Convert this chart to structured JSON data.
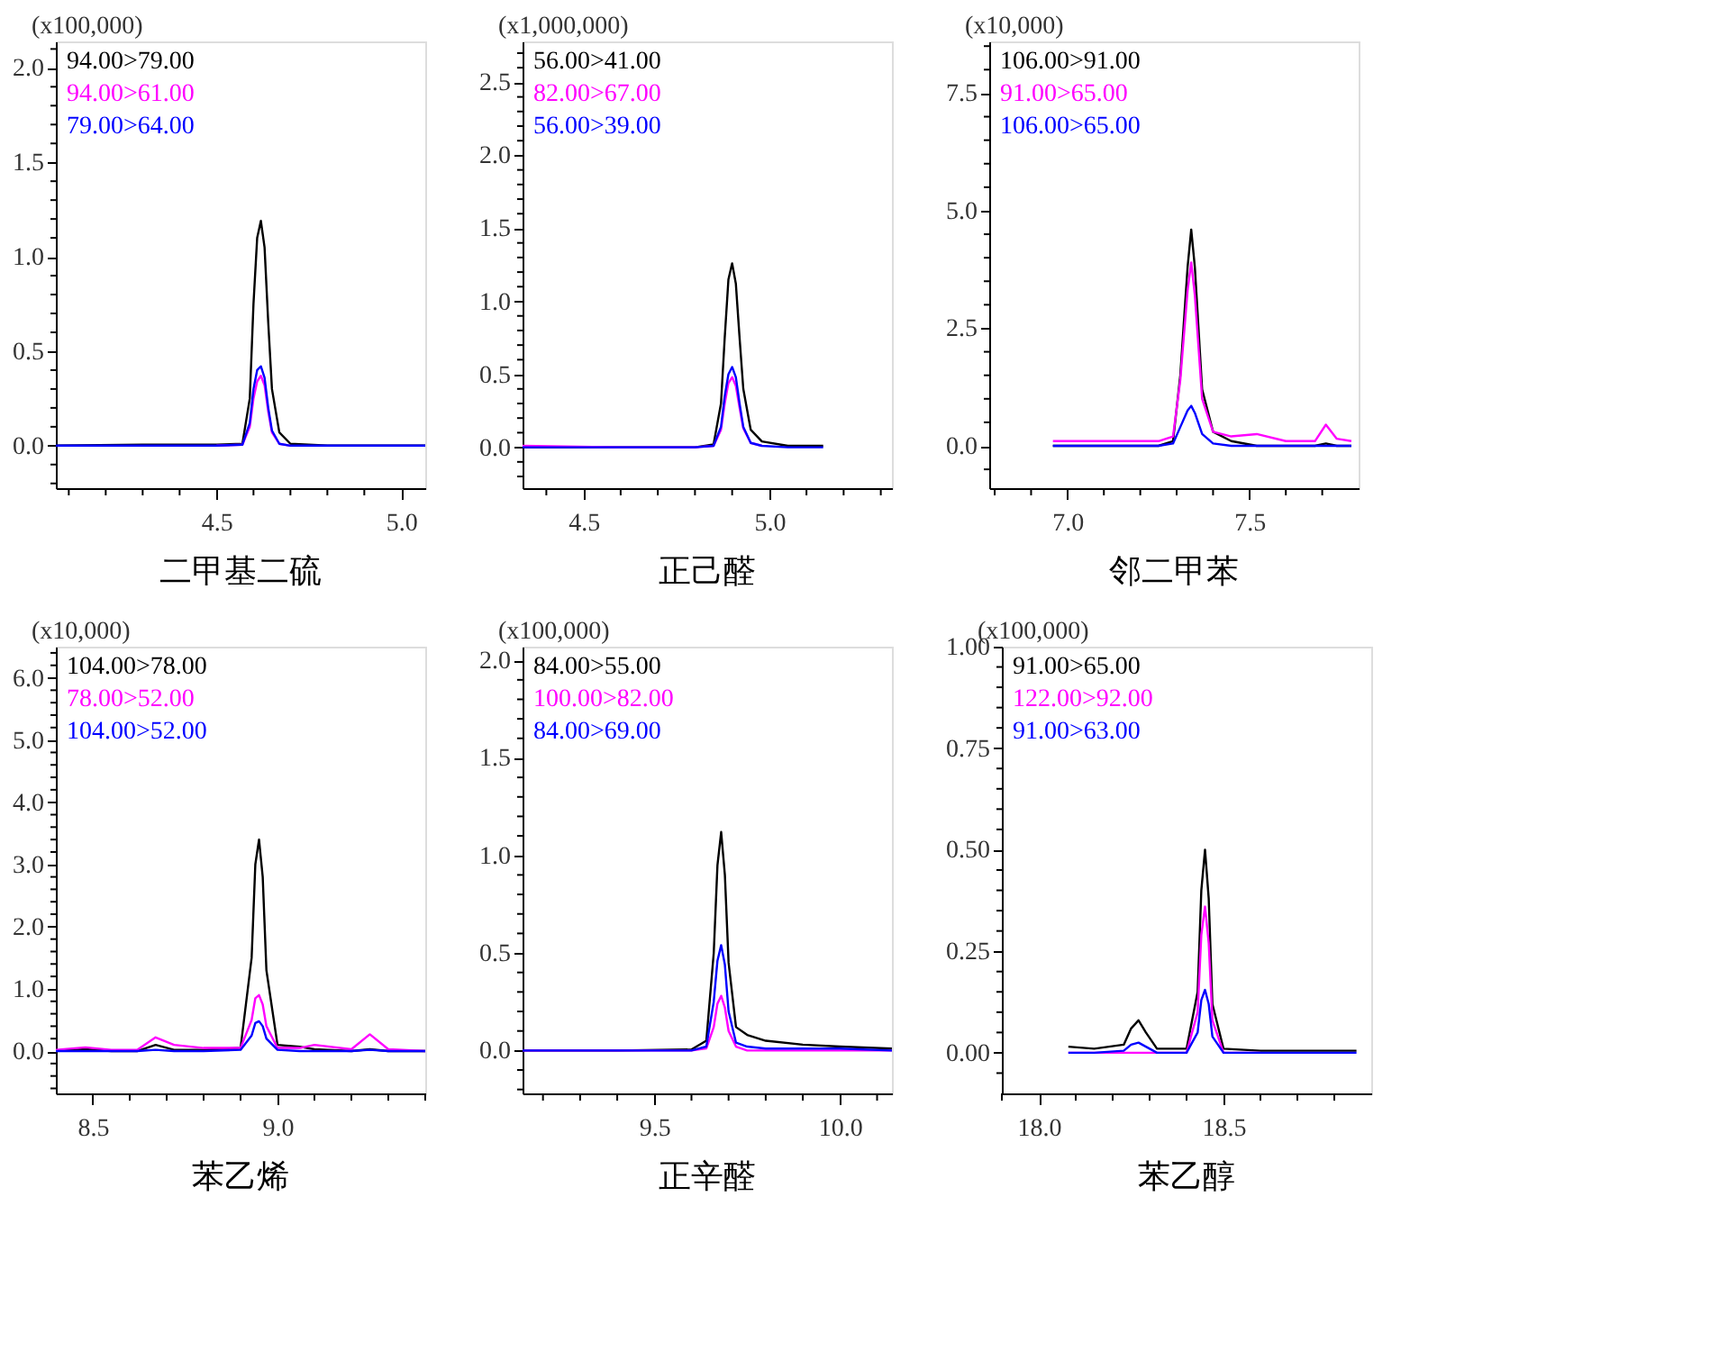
{
  "chart_data": [
    {
      "type": "line",
      "title": "二甲基二硫",
      "ylabel": "(x100,000)",
      "legend": "top left",
      "grid": false,
      "line_style": "solid",
      "marker": "none",
      "x": [
        4.065,
        4.3,
        4.5,
        4.57,
        4.59,
        4.6,
        4.61,
        4.62,
        4.63,
        4.64,
        4.65,
        4.67,
        4.7,
        4.8,
        5.065
      ],
      "series": [
        {
          "name": "94.00>79.00",
          "color": "#000000",
          "values": [
            0,
            0.005,
            0.005,
            0.01,
            0.25,
            0.75,
            1.1,
            1.19,
            1.05,
            0.65,
            0.3,
            0.07,
            0.01,
            0,
            0
          ]
        },
        {
          "name": "94.00>61.00",
          "color": "#ff00ff",
          "values": [
            null,
            null,
            0,
            0.005,
            0.1,
            0.25,
            0.34,
            0.37,
            0.32,
            0.18,
            0.07,
            0.01,
            0,
            null,
            null
          ]
        },
        {
          "name": "79.00>64.00",
          "color": "#0000ff",
          "values": [
            0,
            0,
            0,
            0.005,
            0.12,
            0.3,
            0.4,
            0.42,
            0.36,
            0.2,
            0.08,
            0.01,
            0,
            0,
            0
          ]
        }
      ],
      "xlim": [
        4.065,
        5.065
      ],
      "ylim": [
        -0.225,
        2.14
      ],
      "xticks": [
        {
          "value": 4.1,
          "label": null
        },
        {
          "value": 4.2,
          "label": null
        },
        {
          "value": 4.3,
          "label": null
        },
        {
          "value": 4.4,
          "label": null
        },
        {
          "value": 4.5,
          "label": "4.5"
        },
        {
          "value": 4.6,
          "label": null
        },
        {
          "value": 4.7,
          "label": null
        },
        {
          "value": 4.8,
          "label": null
        },
        {
          "value": 4.9,
          "label": null
        },
        {
          "value": 5.0,
          "label": "5.0"
        }
      ],
      "yticks": [
        {
          "value": -0.2,
          "label": null
        },
        {
          "value": -0.1,
          "label": null
        },
        {
          "value": 0,
          "label": "0.0"
        },
        {
          "value": 0.1,
          "label": null
        },
        {
          "value": 0.2,
          "label": null
        },
        {
          "value": 0.3,
          "label": null
        },
        {
          "value": 0.4,
          "label": null
        },
        {
          "value": 0.5,
          "label": "0.5"
        },
        {
          "value": 0.6,
          "label": null
        },
        {
          "value": 0.7,
          "label": null
        },
        {
          "value": 0.8,
          "label": null
        },
        {
          "value": 0.9,
          "label": null
        },
        {
          "value": 1.0,
          "label": "1.0"
        },
        {
          "value": 1.1,
          "label": null
        },
        {
          "value": 1.2,
          "label": null
        },
        {
          "value": 1.3,
          "label": null
        },
        {
          "value": 1.4,
          "label": null
        },
        {
          "value": 1.5,
          "label": "1.5"
        },
        {
          "value": 1.6,
          "label": null
        },
        {
          "value": 1.7,
          "label": null
        },
        {
          "value": 1.8,
          "label": null
        },
        {
          "value": 1.9,
          "label": null
        },
        {
          "value": 2.0,
          "label": "2.0"
        },
        {
          "value": 2.1,
          "label": null
        }
      ]
    },
    {
      "type": "line",
      "title": "正己醛",
      "ylabel": "(x1,000,000)",
      "legend": "top left",
      "grid": false,
      "line_style": "solid",
      "marker": "none",
      "x": [
        4.336,
        4.6,
        4.8,
        4.85,
        4.87,
        4.88,
        4.89,
        4.9,
        4.91,
        4.92,
        4.93,
        4.95,
        4.98,
        5.05,
        5.145
      ],
      "series": [
        {
          "name": "56.00>41.00",
          "color": "#000000",
          "values": [
            0,
            0,
            0,
            0.02,
            0.3,
            0.75,
            1.15,
            1.26,
            1.12,
            0.75,
            0.4,
            0.12,
            0.04,
            0.01,
            0.01
          ]
        },
        {
          "name": "82.00>67.00",
          "color": "#ff00ff",
          "values": [
            0.01,
            0,
            0,
            0.01,
            0.12,
            0.3,
            0.44,
            0.48,
            0.42,
            0.27,
            0.13,
            0.03,
            0.01,
            null,
            null
          ]
        },
        {
          "name": "56.00>39.00",
          "color": "#0000ff",
          "values": [
            0,
            0,
            0,
            0.01,
            0.14,
            0.35,
            0.5,
            0.55,
            0.48,
            0.3,
            0.14,
            0.03,
            0.01,
            0,
            0
          ]
        }
      ],
      "xlim": [
        4.336,
        5.33
      ],
      "ylim": [
        -0.28,
        2.78
      ],
      "xticks": [
        {
          "value": 4.4,
          "label": null
        },
        {
          "value": 4.5,
          "label": "4.5"
        },
        {
          "value": 4.6,
          "label": null
        },
        {
          "value": 4.7,
          "label": null
        },
        {
          "value": 4.8,
          "label": null
        },
        {
          "value": 4.9,
          "label": null
        },
        {
          "value": 5.0,
          "label": "5.0"
        },
        {
          "value": 5.1,
          "label": null
        },
        {
          "value": 5.2,
          "label": null
        },
        {
          "value": 5.3,
          "label": null
        }
      ],
      "yticks": [
        {
          "value": -0.2,
          "label": null
        },
        {
          "value": -0.1,
          "label": null
        },
        {
          "value": 0,
          "label": "0.0"
        },
        {
          "value": 0.1,
          "label": null
        },
        {
          "value": 0.2,
          "label": null
        },
        {
          "value": 0.3,
          "label": null
        },
        {
          "value": 0.4,
          "label": null
        },
        {
          "value": 0.5,
          "label": "0.5"
        },
        {
          "value": 0.6,
          "label": null
        },
        {
          "value": 0.7,
          "label": null
        },
        {
          "value": 0.8,
          "label": null
        },
        {
          "value": 0.9,
          "label": null
        },
        {
          "value": 1.0,
          "label": "1.0"
        },
        {
          "value": 1.1,
          "label": null
        },
        {
          "value": 1.2,
          "label": null
        },
        {
          "value": 1.3,
          "label": null
        },
        {
          "value": 1.4,
          "label": null
        },
        {
          "value": 1.5,
          "label": "1.5"
        },
        {
          "value": 1.6,
          "label": null
        },
        {
          "value": 1.7,
          "label": null
        },
        {
          "value": 1.8,
          "label": null
        },
        {
          "value": 1.9,
          "label": null
        },
        {
          "value": 2.0,
          "label": "2.0"
        },
        {
          "value": 2.1,
          "label": null
        },
        {
          "value": 2.2,
          "label": null
        },
        {
          "value": 2.3,
          "label": null
        },
        {
          "value": 2.4,
          "label": null
        },
        {
          "value": 2.5,
          "label": "2.5"
        },
        {
          "value": 2.6,
          "label": null
        },
        {
          "value": 2.7,
          "label": null
        }
      ]
    },
    {
      "type": "line",
      "title": "邻二甲苯",
      "ylabel": "(x10,000)",
      "legend": "top left",
      "grid": false,
      "line_style": "solid",
      "marker": "none",
      "x": [
        6.96,
        7.1,
        7.25,
        7.29,
        7.31,
        7.33,
        7.34,
        7.35,
        7.37,
        7.4,
        7.45,
        7.52,
        7.6,
        7.68,
        7.71,
        7.74,
        7.78
      ],
      "series": [
        {
          "name": "106.00>91.00",
          "color": "#000000",
          "values": [
            0,
            0,
            0,
            0.1,
            1.5,
            3.8,
            4.6,
            3.8,
            1.2,
            0.3,
            0.1,
            0,
            0,
            0,
            0.05,
            0,
            0
          ]
        },
        {
          "name": "91.00>65.00",
          "color": "#ff00ff",
          "values": [
            0.1,
            0.1,
            0.1,
            0.2,
            1.4,
            3.3,
            3.9,
            3.2,
            1.0,
            0.3,
            0.2,
            0.25,
            0.1,
            0.1,
            0.45,
            0.15,
            0.1
          ]
        },
        {
          "name": "106.00>65.00",
          "color": "#0000ff",
          "values": [
            0,
            0,
            0,
            0.05,
            0.4,
            0.75,
            0.85,
            0.7,
            0.25,
            0.05,
            0,
            0,
            0,
            0,
            0,
            0,
            0
          ]
        }
      ],
      "xlim": [
        6.785,
        7.8
      ],
      "ylim": [
        -0.9,
        8.6
      ],
      "xticks": [
        {
          "value": 6.8,
          "label": null
        },
        {
          "value": 6.9,
          "label": null
        },
        {
          "value": 7.0,
          "label": "7.0"
        },
        {
          "value": 7.1,
          "label": null
        },
        {
          "value": 7.2,
          "label": null
        },
        {
          "value": 7.3,
          "label": null
        },
        {
          "value": 7.4,
          "label": null
        },
        {
          "value": 7.5,
          "label": "7.5"
        },
        {
          "value": 7.6,
          "label": null
        },
        {
          "value": 7.7,
          "label": null
        }
      ],
      "yticks": [
        {
          "value": -0.5,
          "label": null
        },
        {
          "value": 0,
          "label": "0.0"
        },
        {
          "value": 0.5,
          "label": null
        },
        {
          "value": 1.0,
          "label": null
        },
        {
          "value": 1.5,
          "label": null
        },
        {
          "value": 2.0,
          "label": null
        },
        {
          "value": 2.5,
          "label": "2.5"
        },
        {
          "value": 3.0,
          "label": null
        },
        {
          "value": 3.5,
          "label": null
        },
        {
          "value": 4.0,
          "label": null
        },
        {
          "value": 4.5,
          "label": null
        },
        {
          "value": 5.0,
          "label": "5.0"
        },
        {
          "value": 5.5,
          "label": null
        },
        {
          "value": 6.0,
          "label": null
        },
        {
          "value": 6.5,
          "label": null
        },
        {
          "value": 7.0,
          "label": null
        },
        {
          "value": 7.5,
          "label": "7.5"
        },
        {
          "value": 8.0,
          "label": null
        },
        {
          "value": 8.5,
          "label": null
        }
      ]
    },
    {
      "type": "line",
      "title": "苯乙烯",
      "ylabel": "(x10,000)",
      "legend": "top left",
      "grid": false,
      "line_style": "solid",
      "marker": "none",
      "x": [
        8.4,
        8.48,
        8.55,
        8.62,
        8.67,
        8.72,
        8.8,
        8.9,
        8.93,
        8.94,
        8.95,
        8.96,
        8.97,
        9.0,
        9.06,
        9.1,
        9.2,
        9.25,
        9.3,
        9.4
      ],
      "series": [
        {
          "name": "104.00>78.00",
          "color": "#000000",
          "values": [
            0,
            0.03,
            0,
            0,
            0.1,
            0.02,
            0.02,
            0.05,
            1.5,
            3.0,
            3.4,
            2.8,
            1.3,
            0.1,
            0.07,
            0.03,
            0,
            0.03,
            0,
            0
          ]
        },
        {
          "name": "78.00>52.00",
          "color": "#ff00ff",
          "values": [
            0.02,
            0.06,
            0.02,
            0.02,
            0.22,
            0.1,
            0.05,
            0.05,
            0.5,
            0.85,
            0.9,
            0.75,
            0.4,
            0.05,
            0.05,
            0.1,
            0.03,
            0.27,
            0.03,
            0
          ]
        },
        {
          "name": "104.00>52.00",
          "color": "#0000ff",
          "values": [
            0,
            0,
            0,
            0,
            0.02,
            0,
            0,
            0.02,
            0.25,
            0.45,
            0.48,
            0.4,
            0.2,
            0.02,
            0,
            0,
            0,
            0.02,
            0,
            0
          ]
        }
      ],
      "xlim": [
        8.4,
        9.4
      ],
      "ylim": [
        -0.68,
        6.5
      ],
      "xticks": [
        {
          "value": 8.5,
          "label": "8.5"
        },
        {
          "value": 8.6,
          "label": null
        },
        {
          "value": 8.7,
          "label": null
        },
        {
          "value": 8.8,
          "label": null
        },
        {
          "value": 8.9,
          "label": null
        },
        {
          "value": 9.0,
          "label": "9.0"
        },
        {
          "value": 9.1,
          "label": null
        },
        {
          "value": 9.2,
          "label": null
        },
        {
          "value": 9.3,
          "label": null
        },
        {
          "value": 9.4,
          "label": null
        }
      ],
      "yticks": [
        {
          "value": -0.6,
          "label": null
        },
        {
          "value": -0.4,
          "label": null
        },
        {
          "value": -0.2,
          "label": null
        },
        {
          "value": 0,
          "label": "0.0"
        },
        {
          "value": 0.2,
          "label": null
        },
        {
          "value": 0.4,
          "label": null
        },
        {
          "value": 0.6,
          "label": null
        },
        {
          "value": 0.8,
          "label": null
        },
        {
          "value": 1.0,
          "label": "1.0"
        },
        {
          "value": 1.2,
          "label": null
        },
        {
          "value": 1.4,
          "label": null
        },
        {
          "value": 1.6,
          "label": null
        },
        {
          "value": 1.8,
          "label": null
        },
        {
          "value": 2.0,
          "label": "2.0"
        },
        {
          "value": 2.2,
          "label": null
        },
        {
          "value": 2.4,
          "label": null
        },
        {
          "value": 2.6,
          "label": null
        },
        {
          "value": 2.8,
          "label": null
        },
        {
          "value": 3.0,
          "label": "3.0"
        },
        {
          "value": 3.2,
          "label": null
        },
        {
          "value": 3.4,
          "label": null
        },
        {
          "value": 3.6,
          "label": null
        },
        {
          "value": 3.8,
          "label": null
        },
        {
          "value": 4.0,
          "label": "4.0"
        },
        {
          "value": 4.2,
          "label": null
        },
        {
          "value": 4.4,
          "label": null
        },
        {
          "value": 4.6,
          "label": null
        },
        {
          "value": 4.8,
          "label": null
        },
        {
          "value": 5.0,
          "label": "5.0"
        },
        {
          "value": 5.2,
          "label": null
        },
        {
          "value": 5.4,
          "label": null
        },
        {
          "value": 5.6,
          "label": null
        },
        {
          "value": 5.8,
          "label": null
        },
        {
          "value": 6.0,
          "label": "6.0"
        },
        {
          "value": 6.2,
          "label": null
        },
        {
          "value": 6.4,
          "label": null
        }
      ]
    },
    {
      "type": "line",
      "title": "正辛醛",
      "ylabel": "(x100,000)",
      "legend": "top left",
      "grid": false,
      "line_style": "solid",
      "marker": "none",
      "x": [
        9.145,
        9.4,
        9.6,
        9.64,
        9.66,
        9.67,
        9.68,
        9.69,
        9.7,
        9.72,
        9.75,
        9.8,
        9.9,
        10.0,
        10.14
      ],
      "series": [
        {
          "name": "84.00>55.00",
          "color": "#000000",
          "values": [
            0,
            0,
            0.005,
            0.05,
            0.5,
            0.95,
            1.12,
            0.9,
            0.45,
            0.12,
            0.08,
            0.05,
            0.03,
            0.02,
            0.01
          ]
        },
        {
          "name": "100.00>82.00",
          "color": "#ff00ff",
          "values": [
            0,
            0,
            0,
            0.01,
            0.12,
            0.24,
            0.28,
            0.22,
            0.1,
            0.02,
            0,
            0,
            0,
            0,
            0
          ]
        },
        {
          "name": "84.00>69.00",
          "color": "#0000ff",
          "values": [
            0,
            0,
            0,
            0.02,
            0.25,
            0.46,
            0.54,
            0.44,
            0.2,
            0.04,
            0.02,
            0.01,
            0.01,
            0.01,
            0
          ]
        }
      ],
      "xlim": [
        9.145,
        10.14
      ],
      "ylim": [
        -0.22,
        2.07
      ],
      "xticks": [
        {
          "value": 9.2,
          "label": null
        },
        {
          "value": 9.3,
          "label": null
        },
        {
          "value": 9.4,
          "label": null
        },
        {
          "value": 9.5,
          "label": "9.5"
        },
        {
          "value": 9.6,
          "label": null
        },
        {
          "value": 9.7,
          "label": null
        },
        {
          "value": 9.8,
          "label": null
        },
        {
          "value": 9.9,
          "label": null
        },
        {
          "value": 10.0,
          "label": "10.0"
        },
        {
          "value": 10.1,
          "label": null
        }
      ],
      "yticks": [
        {
          "value": -0.2,
          "label": null
        },
        {
          "value": -0.1,
          "label": null
        },
        {
          "value": 0,
          "label": "0.0"
        },
        {
          "value": 0.1,
          "label": null
        },
        {
          "value": 0.2,
          "label": null
        },
        {
          "value": 0.3,
          "label": null
        },
        {
          "value": 0.4,
          "label": null
        },
        {
          "value": 0.5,
          "label": "0.5"
        },
        {
          "value": 0.6,
          "label": null
        },
        {
          "value": 0.7,
          "label": null
        },
        {
          "value": 0.8,
          "label": null
        },
        {
          "value": 0.9,
          "label": null
        },
        {
          "value": 1.0,
          "label": "1.0"
        },
        {
          "value": 1.1,
          "label": null
        },
        {
          "value": 1.2,
          "label": null
        },
        {
          "value": 1.3,
          "label": null
        },
        {
          "value": 1.4,
          "label": null
        },
        {
          "value": 1.5,
          "label": "1.5"
        },
        {
          "value": 1.6,
          "label": null
        },
        {
          "value": 1.7,
          "label": null
        },
        {
          "value": 1.8,
          "label": null
        },
        {
          "value": 1.9,
          "label": null
        },
        {
          "value": 2.0,
          "label": "2.0"
        }
      ]
    },
    {
      "type": "line",
      "title": "苯乙醇",
      "ylabel": "(x100,000)",
      "legend": "top left",
      "grid": false,
      "line_style": "solid",
      "marker": "none",
      "x": [
        18.08,
        18.15,
        18.23,
        18.25,
        18.27,
        18.29,
        18.32,
        18.4,
        18.43,
        18.44,
        18.45,
        18.46,
        18.47,
        18.5,
        18.6,
        18.7,
        18.86
      ],
      "series": [
        {
          "name": "91.00>65.00",
          "color": "#000000",
          "values": [
            0.015,
            0.01,
            0.02,
            0.06,
            0.08,
            0.05,
            0.01,
            0.01,
            0.15,
            0.4,
            0.5,
            0.38,
            0.12,
            0.01,
            0.005,
            0.005,
            0.005
          ]
        },
        {
          "name": "122.00>92.00",
          "color": "#ff00ff",
          "values": [
            0,
            0,
            0,
            0,
            0,
            0,
            0,
            0,
            0.1,
            0.29,
            0.36,
            0.27,
            0.08,
            0,
            0,
            null,
            null
          ]
        },
        {
          "name": "91.00>63.00",
          "color": "#0000ff",
          "values": [
            0,
            0,
            0.005,
            0.02,
            0.025,
            0.015,
            0,
            0,
            0.05,
            0.13,
            0.155,
            0.12,
            0.04,
            0,
            0,
            0,
            0
          ]
        }
      ],
      "xlim": [
        17.9,
        18.9
      ],
      "ylim": [
        -0.1,
        1.0
      ],
      "xticks": [
        {
          "value": 17.9,
          "label": null
        },
        {
          "value": 18.0,
          "label": "18.0"
        },
        {
          "value": 18.1,
          "label": null
        },
        {
          "value": 18.2,
          "label": null
        },
        {
          "value": 18.3,
          "label": null
        },
        {
          "value": 18.4,
          "label": null
        },
        {
          "value": 18.5,
          "label": "18.5"
        },
        {
          "value": 18.6,
          "label": null
        },
        {
          "value": 18.7,
          "label": null
        },
        {
          "value": 18.8,
          "label": null
        }
      ],
      "yticks": [
        {
          "value": -0.05,
          "label": null
        },
        {
          "value": 0,
          "label": "0.00"
        },
        {
          "value": 0.05,
          "label": null
        },
        {
          "value": 0.1,
          "label": null
        },
        {
          "value": 0.15,
          "label": null
        },
        {
          "value": 0.2,
          "label": null
        },
        {
          "value": 0.25,
          "label": "0.25"
        },
        {
          "value": 0.3,
          "label": null
        },
        {
          "value": 0.35,
          "label": null
        },
        {
          "value": 0.4,
          "label": null
        },
        {
          "value": 0.45,
          "label": null
        },
        {
          "value": 0.5,
          "label": "0.50"
        },
        {
          "value": 0.55,
          "label": null
        },
        {
          "value": 0.6,
          "label": null
        },
        {
          "value": 0.65,
          "label": null
        },
        {
          "value": 0.7,
          "label": null
        },
        {
          "value": 0.75,
          "label": "0.75"
        },
        {
          "value": 0.8,
          "label": null
        },
        {
          "value": 0.85,
          "label": null
        },
        {
          "value": 0.9,
          "label": null
        },
        {
          "value": 0.95,
          "label": null
        },
        {
          "value": 1.0,
          "label": "1.00"
        }
      ]
    }
  ]
}
